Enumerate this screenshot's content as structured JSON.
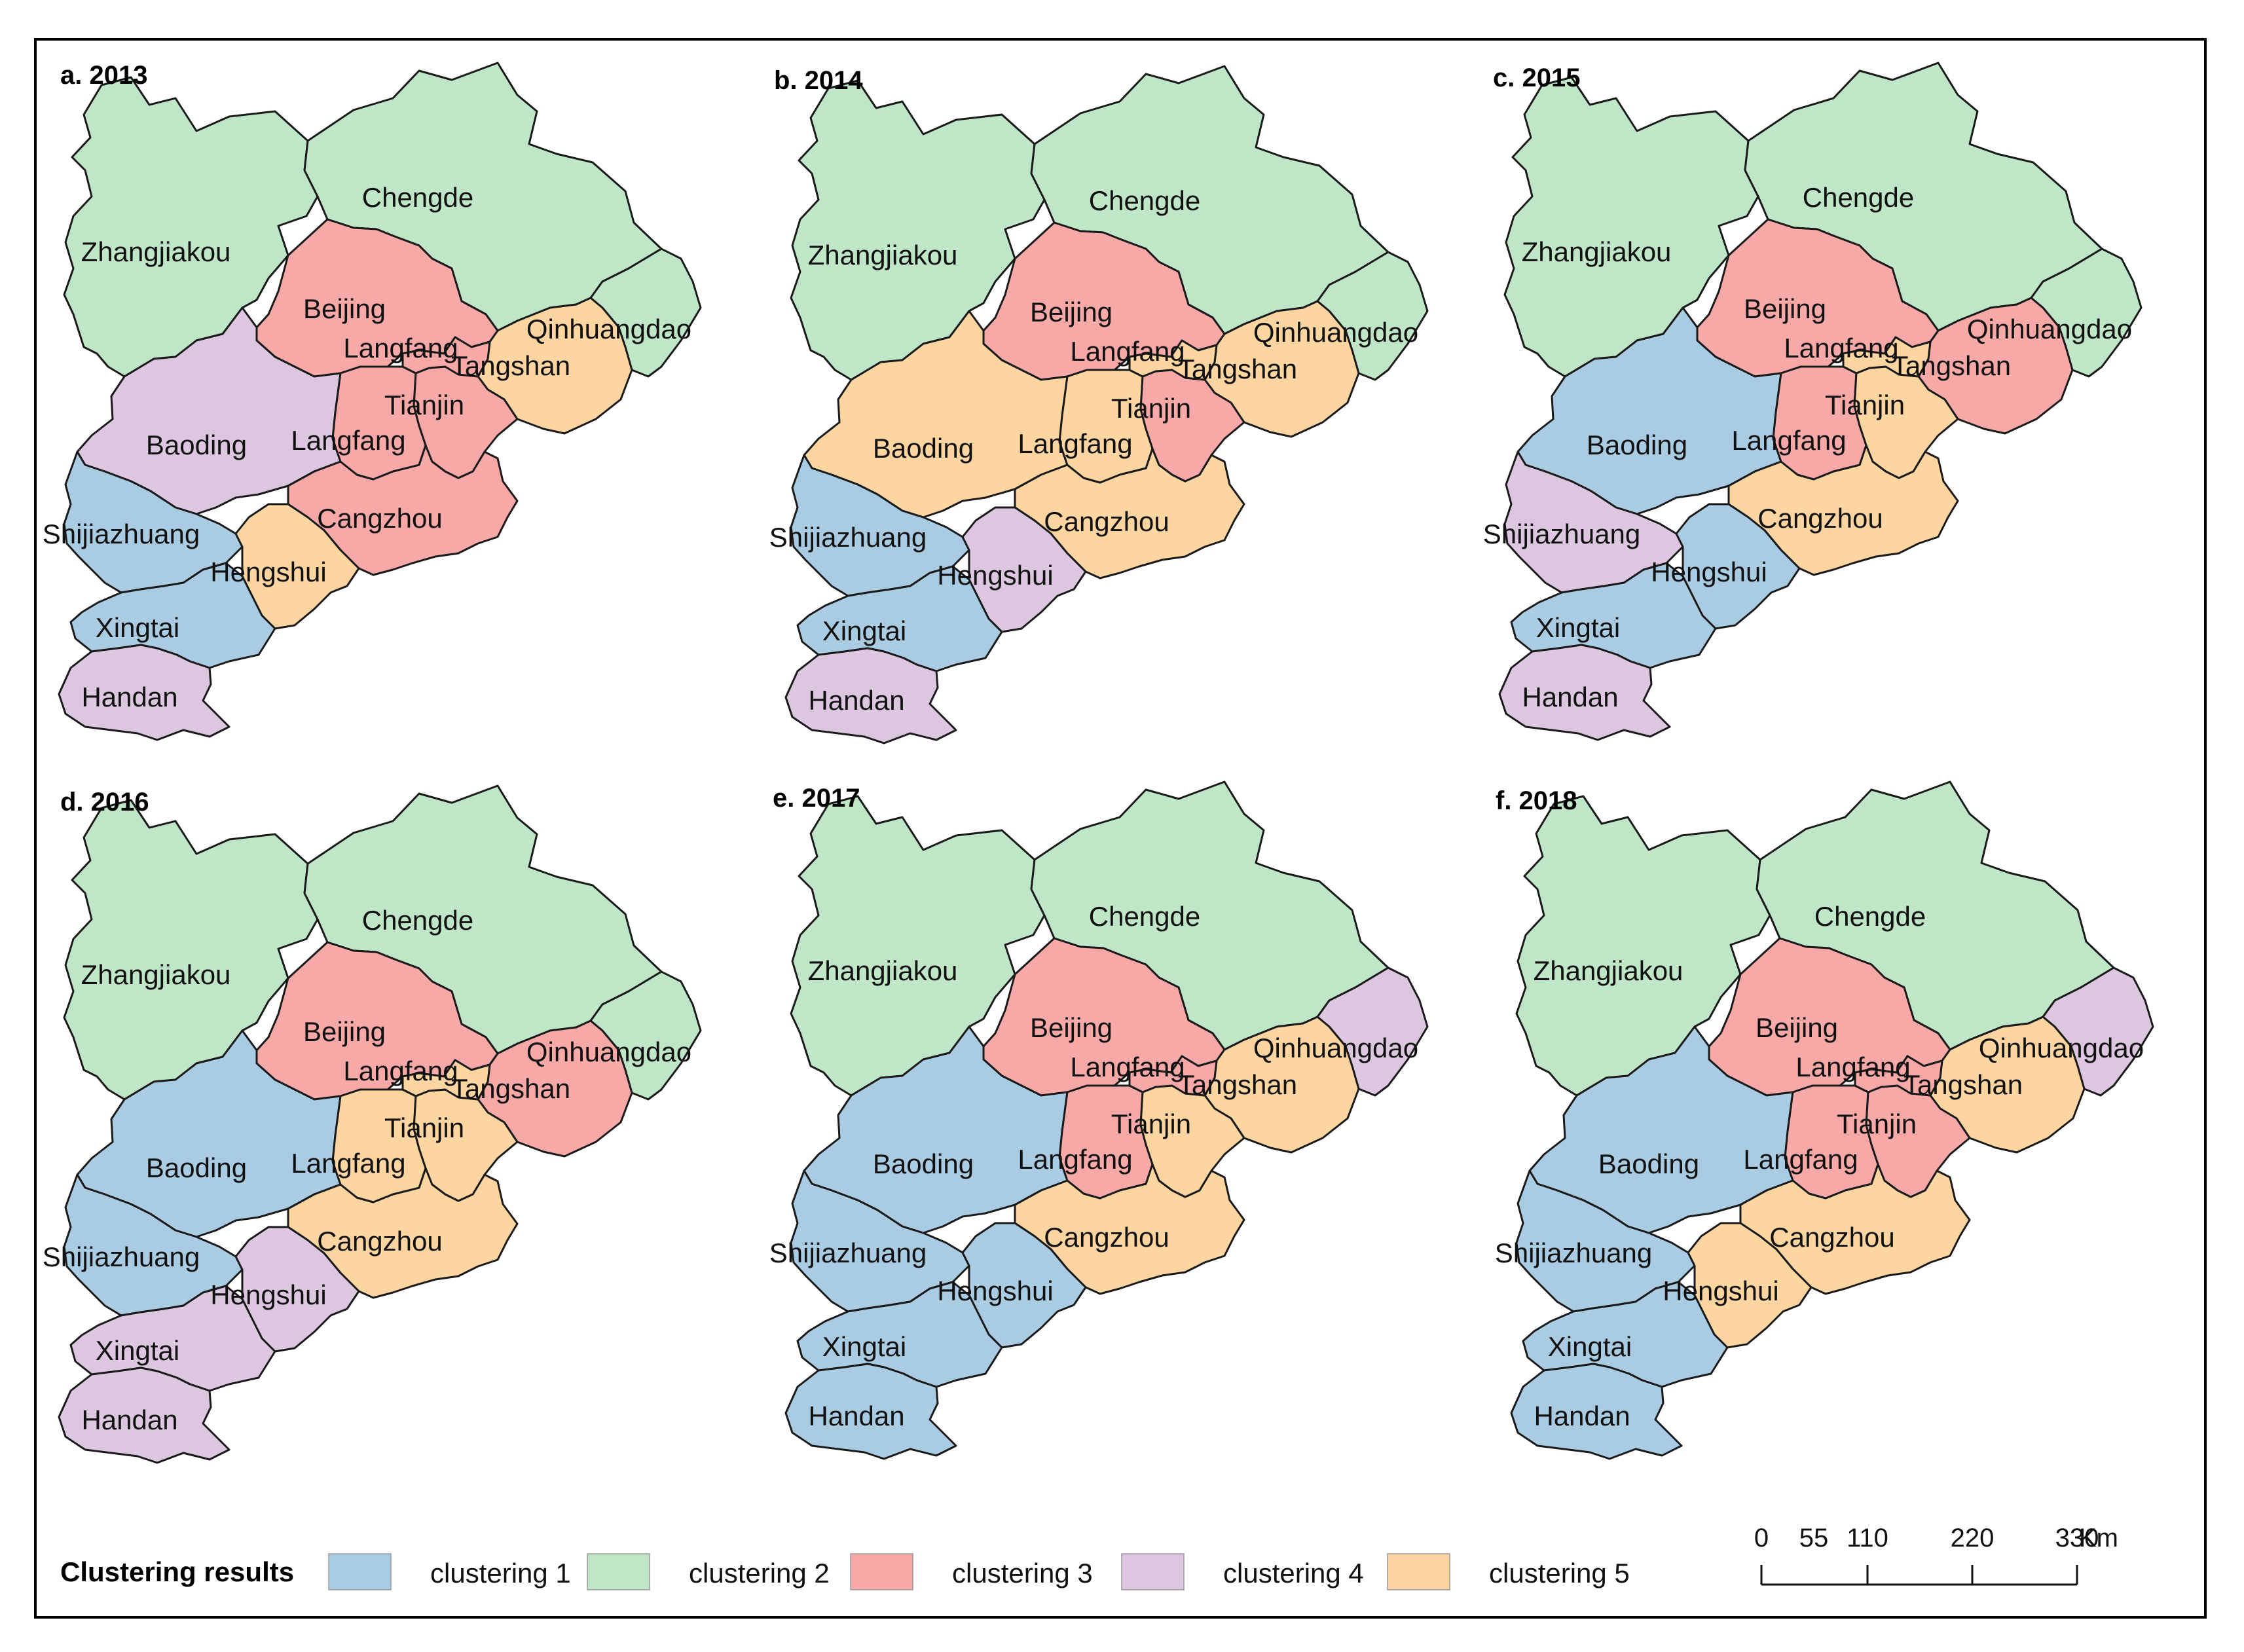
{
  "colors": {
    "clustering 1": "#a9cce3",
    "clustering 2": "#bfe6c6",
    "clustering 3": "#f7a9a8",
    "clustering 4": "#dcc6e0",
    "clustering 5": "#fdd5a0"
  },
  "panels": [
    {
      "title": "a. 2013",
      "assign": {
        "Zhangjiakou": 2,
        "Chengde": 2,
        "Beijing": 3,
        "Qinhuangdao": 2,
        "Tangshan": 5,
        "Langfang": 3,
        "Tianjin": 3,
        "Langfang_s": 3,
        "Baoding": 4,
        "Shijiazhuang": 1,
        "Cangzhou": 3,
        "Hengshui": 5,
        "Xingtai": 1,
        "Handan": 4
      }
    },
    {
      "title": "b. 2014",
      "assign": {
        "Zhangjiakou": 2,
        "Chengde": 2,
        "Beijing": 3,
        "Qinhuangdao": 2,
        "Tangshan": 5,
        "Langfang": 5,
        "Tianjin": 3,
        "Langfang_s": 5,
        "Baoding": 5,
        "Shijiazhuang": 1,
        "Cangzhou": 5,
        "Hengshui": 4,
        "Xingtai": 1,
        "Handan": 4
      }
    },
    {
      "title": "c. 2015",
      "assign": {
        "Zhangjiakou": 2,
        "Chengde": 2,
        "Beijing": 3,
        "Qinhuangdao": 2,
        "Tangshan": 3,
        "Langfang": 5,
        "Tianjin": 5,
        "Langfang_s": 3,
        "Baoding": 1,
        "Shijiazhuang": 4,
        "Cangzhou": 5,
        "Hengshui": 1,
        "Xingtai": 1,
        "Handan": 4
      }
    },
    {
      "title": "d. 2016",
      "assign": {
        "Zhangjiakou": 2,
        "Chengde": 2,
        "Beijing": 3,
        "Qinhuangdao": 2,
        "Tangshan": 3,
        "Langfang": 5,
        "Tianjin": 5,
        "Langfang_s": 5,
        "Baoding": 1,
        "Shijiazhuang": 1,
        "Cangzhou": 5,
        "Hengshui": 4,
        "Xingtai": 4,
        "Handan": 4
      }
    },
    {
      "title": "e. 2017",
      "assign": {
        "Zhangjiakou": 2,
        "Chengde": 2,
        "Beijing": 3,
        "Qinhuangdao": 4,
        "Tangshan": 5,
        "Langfang": 3,
        "Tianjin": 5,
        "Langfang_s": 3,
        "Baoding": 1,
        "Shijiazhuang": 1,
        "Cangzhou": 5,
        "Hengshui": 1,
        "Xingtai": 1,
        "Handan": 1
      }
    },
    {
      "title": "f. 2018",
      "assign": {
        "Zhangjiakou": 2,
        "Chengde": 2,
        "Beijing": 3,
        "Qinhuangdao": 4,
        "Tangshan": 5,
        "Langfang": 3,
        "Tianjin": 3,
        "Langfang_s": 3,
        "Baoding": 1,
        "Shijiazhuang": 1,
        "Cangzhou": 5,
        "Hengshui": 5,
        "Xingtai": 1,
        "Handan": 1
      }
    }
  ],
  "region_labels": {
    "Zhangjiakou": "Zhangjiakou",
    "Chengde": "Chengde",
    "Beijing": "Beijing",
    "Qinhuangdao": "Qinhuangdao",
    "Tangshan": "Tangshan",
    "Langfang": "Langfang",
    "Tianjin": "Tianjin",
    "Langfang_s": "Langfang",
    "Baoding": "Baoding",
    "Shijiazhuang": "Shijiazhuang",
    "Cangzhou": "Cangzhou",
    "Hengshui": "Hengshui",
    "Xingtai": "Xingtai",
    "Handan": "Handan"
  },
  "legend": {
    "title": "Clustering results",
    "items": [
      "clustering 1",
      "clustering 2",
      "clustering 3",
      "clustering 4",
      "clustering 5"
    ]
  },
  "scale_bar": {
    "ticks": [
      "0",
      "55",
      "110",
      "220",
      "330"
    ],
    "unit": "Km"
  }
}
